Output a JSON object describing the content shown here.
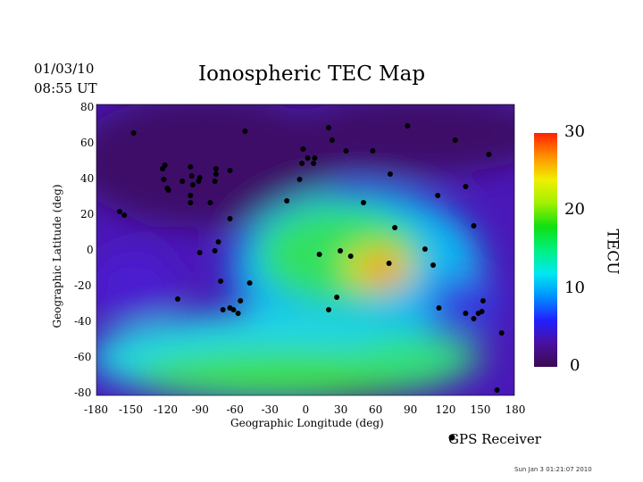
{
  "header": {
    "date": "01/03/10",
    "time": "08:55 UT",
    "title": "Ionospheric TEC Map"
  },
  "footer": {
    "timestamp": "Sun Jan  3 01:21:07 2010"
  },
  "legend": {
    "marker_label": "GPS Receiver"
  },
  "chart_data": {
    "type": "heatmap",
    "title": "Ionospheric TEC Map",
    "xlabel": "Geographic Longitude (deg)",
    "ylabel": "Geographic Latitude (deg)",
    "xlim": [
      -180,
      180
    ],
    "ylim": [
      -80,
      80
    ],
    "xticks": [
      "-180",
      "-150",
      "-120",
      "-90",
      "-60",
      "-30",
      "0",
      "30",
      "60",
      "90",
      "120",
      "150",
      "180"
    ],
    "yticks": [
      "80",
      "60",
      "40",
      "20",
      "0",
      "-20",
      "-40",
      "-60",
      "-80"
    ],
    "colorbar": {
      "label": "TECU",
      "range": [
        0,
        30
      ],
      "ticks": [
        "30",
        "20",
        "10",
        "0"
      ],
      "colors": [
        "#3a0a50",
        "#4b0fa0",
        "#2020ff",
        "#0090ff",
        "#00e8f0",
        "#00f080",
        "#10e010",
        "#a0f000",
        "#f0f000",
        "#ff9000",
        "#ff2000"
      ]
    },
    "tec_regions": [
      {
        "lon": -110,
        "lat": 45,
        "tec": 2
      },
      {
        "lon": 100,
        "lat": 65,
        "tec": 3
      },
      {
        "lon": -150,
        "lat": -30,
        "tec": 8
      },
      {
        "lon": 20,
        "lat": 10,
        "tec": 16
      },
      {
        "lon": 70,
        "lat": -8,
        "tec": 27
      },
      {
        "lon": -30,
        "lat": -70,
        "tec": 18
      },
      {
        "lon": 60,
        "lat": -70,
        "tec": 15
      }
    ],
    "receivers": [
      [
        -148,
        66
      ],
      [
        -52,
        67
      ],
      [
        -121,
        48
      ],
      [
        -123,
        46
      ],
      [
        -99,
        47
      ],
      [
        -98,
        42
      ],
      [
        -91,
        41
      ],
      [
        -106,
        39
      ],
      [
        -122,
        40
      ],
      [
        -97,
        37
      ],
      [
        -92,
        39
      ],
      [
        -77,
        46
      ],
      [
        -77,
        43
      ],
      [
        -65,
        45
      ],
      [
        -78,
        39
      ],
      [
        -119,
        35
      ],
      [
        -118,
        34
      ],
      [
        -99,
        31
      ],
      [
        -99,
        27
      ],
      [
        -82,
        27
      ],
      [
        -65,
        18
      ],
      [
        -160,
        22
      ],
      [
        -156,
        20
      ],
      [
        -75,
        5
      ],
      [
        -78,
        0
      ],
      [
        -91,
        -1
      ],
      [
        -110,
        -27
      ],
      [
        -73,
        -17
      ],
      [
        -48,
        -18
      ],
      [
        -71,
        -33
      ],
      [
        -65,
        -32
      ],
      [
        -62,
        -33
      ],
      [
        -58,
        -35
      ],
      [
        -56,
        -28
      ],
      [
        -5,
        40
      ],
      [
        -3,
        49
      ],
      [
        -2,
        57
      ],
      [
        2,
        52
      ],
      [
        8,
        52
      ],
      [
        7,
        49
      ],
      [
        20,
        69
      ],
      [
        23,
        62
      ],
      [
        35,
        56
      ],
      [
        58,
        56
      ],
      [
        88,
        70
      ],
      [
        129,
        62
      ],
      [
        158,
        54
      ],
      [
        73,
        43
      ],
      [
        -16,
        28
      ],
      [
        50,
        27
      ],
      [
        77,
        13
      ],
      [
        114,
        31
      ],
      [
        138,
        36
      ],
      [
        145,
        14
      ],
      [
        103,
        1
      ],
      [
        110,
        -8
      ],
      [
        12,
        -2
      ],
      [
        30,
        0
      ],
      [
        39,
        -3
      ],
      [
        27,
        -26
      ],
      [
        20,
        -33
      ],
      [
        72,
        -7
      ],
      [
        115,
        -32
      ],
      [
        138,
        -35
      ],
      [
        145,
        -38
      ],
      [
        149,
        -35
      ],
      [
        152,
        -34
      ],
      [
        153,
        -28
      ],
      [
        169,
        -46
      ],
      [
        165,
        -78
      ]
    ]
  }
}
